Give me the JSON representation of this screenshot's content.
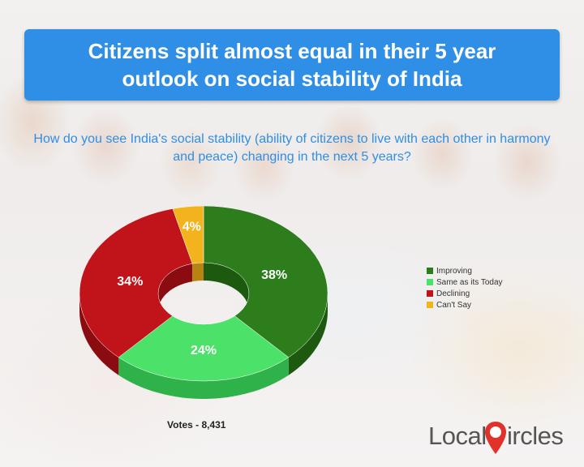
{
  "title": "Citizens split almost equal in their 5 year outlook on social stability of India",
  "question": "How do you see India's social stability (ability of citizens to live with each other in harmony and peace) changing in the next 5 years?",
  "votes_label": "Votes - 8,431",
  "logo": {
    "part1": "Local",
    "part2": "ircles"
  },
  "colors": {
    "title_bg": "#2f8ee6",
    "question_text": "#2f8ee6",
    "logo_red": "#e0312a"
  },
  "chart_data": {
    "type": "pie",
    "style": "donut-3d",
    "categories": [
      "Improving",
      "Same as its Today",
      "Declining",
      "Can't Say"
    ],
    "values": [
      38,
      24,
      34,
      4
    ],
    "labels": [
      "38%",
      "24%",
      "34%",
      "4%"
    ],
    "colors": [
      "#2e7d1c",
      "#4ce26a",
      "#c0141a",
      "#f2b31c"
    ],
    "side_colors": [
      "#1d5a10",
      "#30b24b",
      "#8a0c10",
      "#b88411"
    ],
    "legend_position": "right"
  }
}
